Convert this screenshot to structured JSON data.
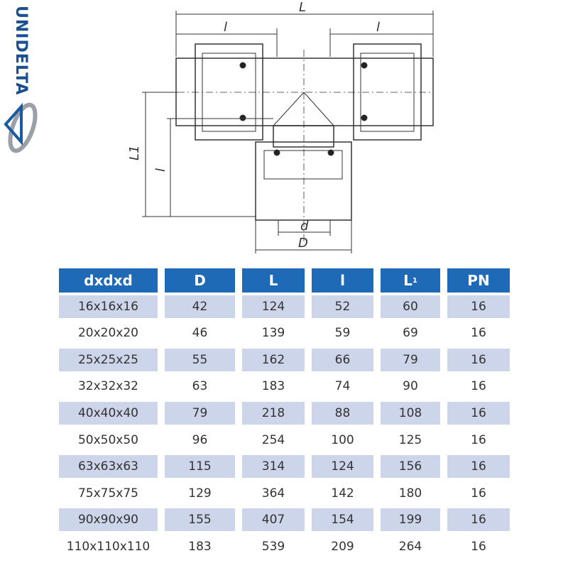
{
  "brand": {
    "logo_text": "UNIDELTA",
    "colors": {
      "blue": "#1a4f8f",
      "gray": "#8a9099"
    }
  },
  "drawing": {
    "labels": {
      "L": "L",
      "l_left": "l",
      "l_right": "l",
      "L1": "L1",
      "l_vertical": "l",
      "d": "d",
      "D": "D"
    }
  },
  "table": {
    "colors": {
      "header": "#1e6ab6",
      "stripe": "#cdd5ea"
    },
    "headers": [
      "dxdxd",
      "D",
      "L",
      "l",
      "L",
      "PN"
    ],
    "header_subscript": "1",
    "rows": [
      [
        "16x16x16",
        "42",
        "124",
        "52",
        "60",
        "16"
      ],
      [
        "20x20x20",
        "46",
        "139",
        "59",
        "69",
        "16"
      ],
      [
        "25x25x25",
        "55",
        "162",
        "66",
        "79",
        "16"
      ],
      [
        "32x32x32",
        "63",
        "183",
        "74",
        "90",
        "16"
      ],
      [
        "40x40x40",
        "79",
        "218",
        "88",
        "108",
        "16"
      ],
      [
        "50x50x50",
        "96",
        "254",
        "100",
        "125",
        "16"
      ],
      [
        "63x63x63",
        "115",
        "314",
        "124",
        "156",
        "16"
      ],
      [
        "75x75x75",
        "129",
        "364",
        "142",
        "180",
        "16"
      ],
      [
        "90x90x90",
        "155",
        "407",
        "154",
        "199",
        "16"
      ],
      [
        "110x110x110",
        "183",
        "539",
        "209",
        "264",
        "16"
      ]
    ]
  }
}
